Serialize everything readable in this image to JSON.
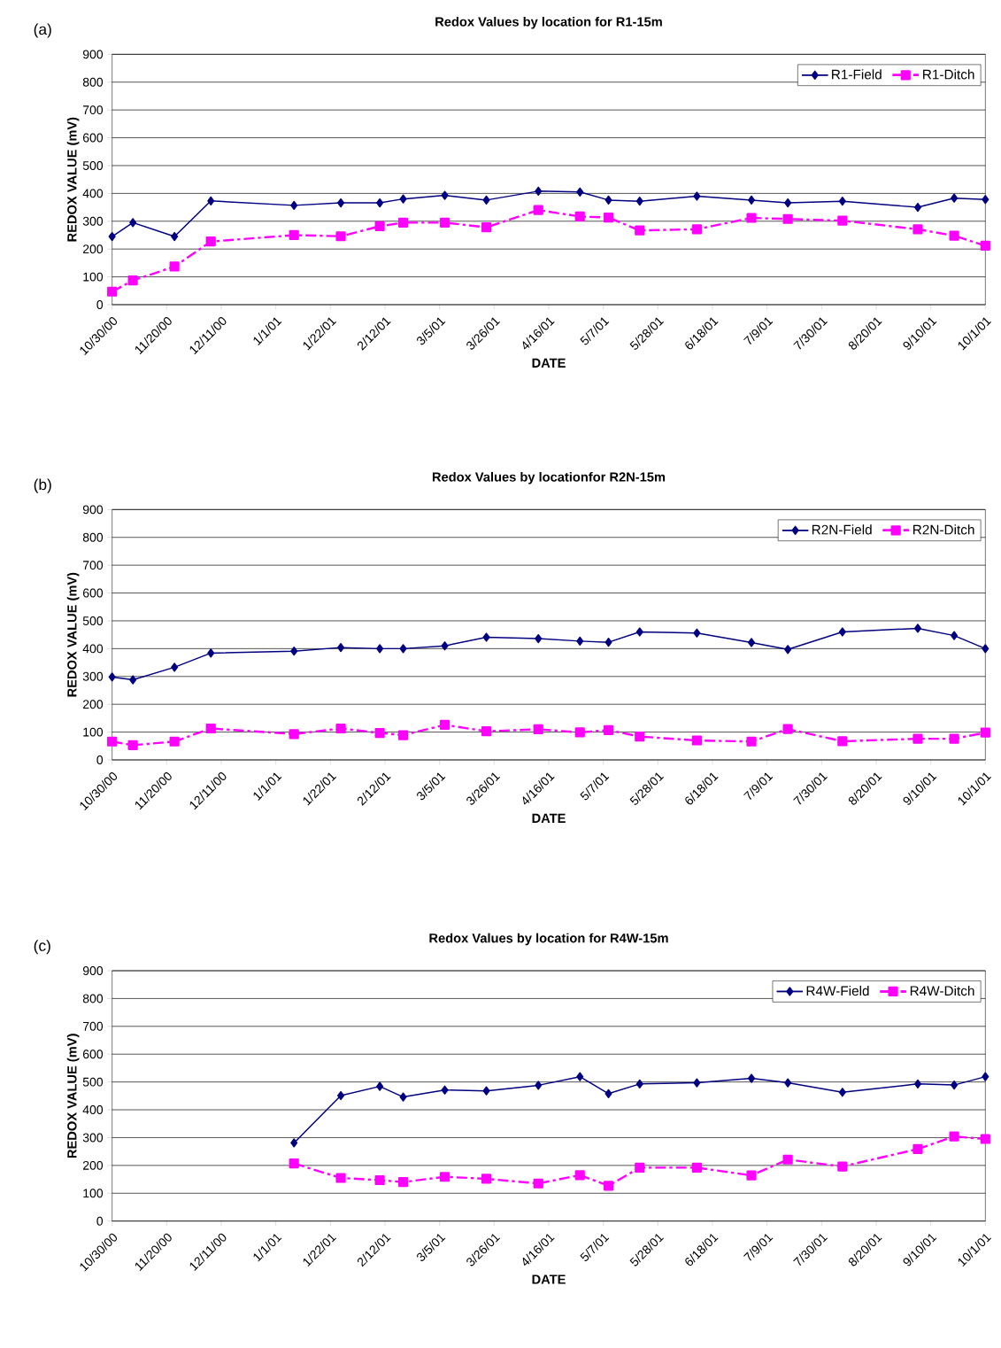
{
  "chart_data": [
    {
      "type": "line",
      "title": "Redox Values by location for R1-15m",
      "xlabel": "DATE",
      "ylabel": "REDOX VALUE (mV)",
      "annotations": [
        "(a)"
      ],
      "x": [
        "2000-10-30",
        "2000-11-07",
        "2000-11-23",
        "2000-12-07",
        "2001-01-08",
        "2001-01-26",
        "2001-02-10",
        "2001-02-19",
        "2001-03-07",
        "2001-03-23",
        "2001-04-12",
        "2001-04-28",
        "2001-05-09",
        "2001-05-21",
        "2001-06-12",
        "2001-07-03",
        "2001-07-17",
        "2001-08-07",
        "2001-09-05",
        "2001-09-19",
        "2001-10-01"
      ],
      "xlim": [
        "2000-10-30",
        "2001-10-01"
      ],
      "xticks": [
        {
          "value": "2000-10-30",
          "label": "10/30/00"
        },
        {
          "value": "2000-11-20",
          "label": "11/20/00"
        },
        {
          "value": "2000-12-11",
          "label": "12/11/00"
        },
        {
          "value": "2001-01-01",
          "label": "1/1/01"
        },
        {
          "value": "2001-01-22",
          "label": "1/22/01"
        },
        {
          "value": "2001-02-12",
          "label": "2/12/01"
        },
        {
          "value": "2001-03-05",
          "label": "3/5/01"
        },
        {
          "value": "2001-03-26",
          "label": "3/26/01"
        },
        {
          "value": "2001-04-16",
          "label": "4/16/01"
        },
        {
          "value": "2001-05-07",
          "label": "5/7/01"
        },
        {
          "value": "2001-05-28",
          "label": "5/28/01"
        },
        {
          "value": "2001-06-18",
          "label": "6/18/01"
        },
        {
          "value": "2001-07-09",
          "label": "7/9/01"
        },
        {
          "value": "2001-07-30",
          "label": "7/30/01"
        },
        {
          "value": "2001-08-20",
          "label": "8/20/01"
        },
        {
          "value": "2001-09-10",
          "label": "9/10/01"
        },
        {
          "value": "2001-10-01",
          "label": "10/1/01"
        }
      ],
      "ylim": [
        0,
        900
      ],
      "yticks": [
        0,
        100,
        200,
        300,
        400,
        500,
        600,
        700,
        800,
        900
      ],
      "grid": "y",
      "legend": "top right",
      "series": [
        {
          "name": "R1-Field",
          "color": "#000080",
          "marker": "diamond",
          "line_style": "solid",
          "values": [
            245,
            295,
            245,
            373,
            357,
            366,
            366,
            380,
            393,
            376,
            408,
            405,
            376,
            372,
            390,
            376,
            366,
            372,
            350,
            383,
            378
          ]
        },
        {
          "name": "R1-Ditch",
          "color": "#ff00ff",
          "marker": "square",
          "line_style": "dashed",
          "values": [
            47,
            87,
            137,
            227,
            250,
            246,
            282,
            295,
            295,
            278,
            340,
            317,
            313,
            267,
            271,
            312,
            308,
            302,
            271,
            248,
            212
          ]
        }
      ]
    },
    {
      "type": "line",
      "title": "Redox Values by locationfor R2N-15m",
      "xlabel": "DATE",
      "ylabel": "REDOX VALUE (mV)",
      "annotations": [
        "(b)"
      ],
      "x": [
        "2000-10-30",
        "2000-11-07",
        "2000-11-23",
        "2000-12-07",
        "2001-01-08",
        "2001-01-26",
        "2001-02-10",
        "2001-02-19",
        "2001-03-07",
        "2001-03-23",
        "2001-04-12",
        "2001-04-28",
        "2001-05-09",
        "2001-05-21",
        "2001-06-12",
        "2001-07-03",
        "2001-07-17",
        "2001-08-07",
        "2001-09-05",
        "2001-09-19",
        "2001-10-01"
      ],
      "xlim": [
        "2000-10-30",
        "2001-10-01"
      ],
      "xticks": [
        {
          "value": "2000-10-30",
          "label": "10/30/00"
        },
        {
          "value": "2000-11-20",
          "label": "11/20/00"
        },
        {
          "value": "2000-12-11",
          "label": "12/11/00"
        },
        {
          "value": "2001-01-01",
          "label": "1/1/01"
        },
        {
          "value": "2001-01-22",
          "label": "1/22/01"
        },
        {
          "value": "2001-02-12",
          "label": "2/12/01"
        },
        {
          "value": "2001-03-05",
          "label": "3/5/01"
        },
        {
          "value": "2001-03-26",
          "label": "3/26/01"
        },
        {
          "value": "2001-04-16",
          "label": "4/16/01"
        },
        {
          "value": "2001-05-07",
          "label": "5/7/01"
        },
        {
          "value": "2001-05-28",
          "label": "5/28/01"
        },
        {
          "value": "2001-06-18",
          "label": "6/18/01"
        },
        {
          "value": "2001-07-09",
          "label": "7/9/01"
        },
        {
          "value": "2001-07-30",
          "label": "7/30/01"
        },
        {
          "value": "2001-08-20",
          "label": "8/20/01"
        },
        {
          "value": "2001-09-10",
          "label": "9/10/01"
        },
        {
          "value": "2001-10-01",
          "label": "10/1/01"
        }
      ],
      "ylim": [
        0,
        900
      ],
      "yticks": [
        0,
        100,
        200,
        300,
        400,
        500,
        600,
        700,
        800,
        900
      ],
      "grid": "y",
      "legend": "top right",
      "series": [
        {
          "name": "R2N-Field",
          "color": "#000080",
          "marker": "diamond",
          "line_style": "solid",
          "values": [
            298,
            288,
            333,
            384,
            391,
            404,
            400,
            400,
            410,
            441,
            436,
            427,
            423,
            460,
            456,
            422,
            397,
            460,
            473,
            447,
            400
          ]
        },
        {
          "name": "R2N-Ditch",
          "color": "#ff00ff",
          "marker": "square",
          "line_style": "dashed",
          "values": [
            66,
            53,
            66,
            113,
            93,
            113,
            97,
            89,
            126,
            103,
            110,
            99,
            107,
            84,
            70,
            66,
            111,
            67,
            76,
            76,
            98
          ]
        }
      ]
    },
    {
      "type": "line",
      "title": "Redox Values by location for R4W-15m",
      "xlabel": "DATE",
      "ylabel": "REDOX VALUE (mV)",
      "annotations": [
        "(c)"
      ],
      "xlim": [
        "2000-10-30",
        "2001-10-01"
      ],
      "xticks": [
        {
          "value": "2000-10-30",
          "label": "10/30/00"
        },
        {
          "value": "2000-11-20",
          "label": "11/20/00"
        },
        {
          "value": "2000-12-11",
          "label": "12/11/00"
        },
        {
          "value": "2001-01-01",
          "label": "1/1/01"
        },
        {
          "value": "2001-01-22",
          "label": "1/22/01"
        },
        {
          "value": "2001-02-12",
          "label": "2/12/01"
        },
        {
          "value": "2001-03-05",
          "label": "3/5/01"
        },
        {
          "value": "2001-03-26",
          "label": "3/26/01"
        },
        {
          "value": "2001-04-16",
          "label": "4/16/01"
        },
        {
          "value": "2001-05-07",
          "label": "5/7/01"
        },
        {
          "value": "2001-05-28",
          "label": "5/28/01"
        },
        {
          "value": "2001-06-18",
          "label": "6/18/01"
        },
        {
          "value": "2001-07-09",
          "label": "7/9/01"
        },
        {
          "value": "2001-07-30",
          "label": "7/30/01"
        },
        {
          "value": "2001-08-20",
          "label": "8/20/01"
        },
        {
          "value": "2001-09-10",
          "label": "9/10/01"
        },
        {
          "value": "2001-10-01",
          "label": "10/1/01"
        }
      ],
      "ylim": [
        0,
        900
      ],
      "yticks": [
        0,
        100,
        200,
        300,
        400,
        500,
        600,
        700,
        800,
        900
      ],
      "grid": "y",
      "legend": "top right",
      "series": [
        {
          "name": "R4W-Field",
          "color": "#000080",
          "marker": "diamond",
          "line_style": "solid",
          "x": [
            "2001-01-08",
            "2001-01-26",
            "2001-02-10",
            "2001-02-19",
            "2001-03-07",
            "2001-03-23",
            "2001-04-12",
            "2001-04-28",
            "2001-05-09",
            "2001-05-21",
            "2001-06-12",
            "2001-07-03",
            "2001-07-17",
            "2001-08-07",
            "2001-09-05",
            "2001-09-19",
            "2001-10-01"
          ],
          "values": [
            281,
            451,
            484,
            446,
            471,
            468,
            488,
            519,
            458,
            493,
            497,
            513,
            497,
            463,
            493,
            489,
            519
          ]
        },
        {
          "name": "R4W-Ditch",
          "color": "#ff00ff",
          "marker": "square",
          "line_style": "dashed",
          "x": [
            "2001-01-08",
            "2001-01-26",
            "2001-02-10",
            "2001-02-19",
            "2001-03-07",
            "2001-03-23",
            "2001-04-12",
            "2001-04-28",
            "2001-05-09",
            "2001-05-21",
            "2001-06-12",
            "2001-07-03",
            "2001-07-17",
            "2001-08-07",
            "2001-09-05",
            "2001-09-19",
            "2001-10-01"
          ],
          "values": [
            207,
            155,
            147,
            140,
            159,
            152,
            135,
            165,
            127,
            192,
            192,
            164,
            221,
            196,
            259,
            304,
            295
          ]
        }
      ]
    }
  ]
}
